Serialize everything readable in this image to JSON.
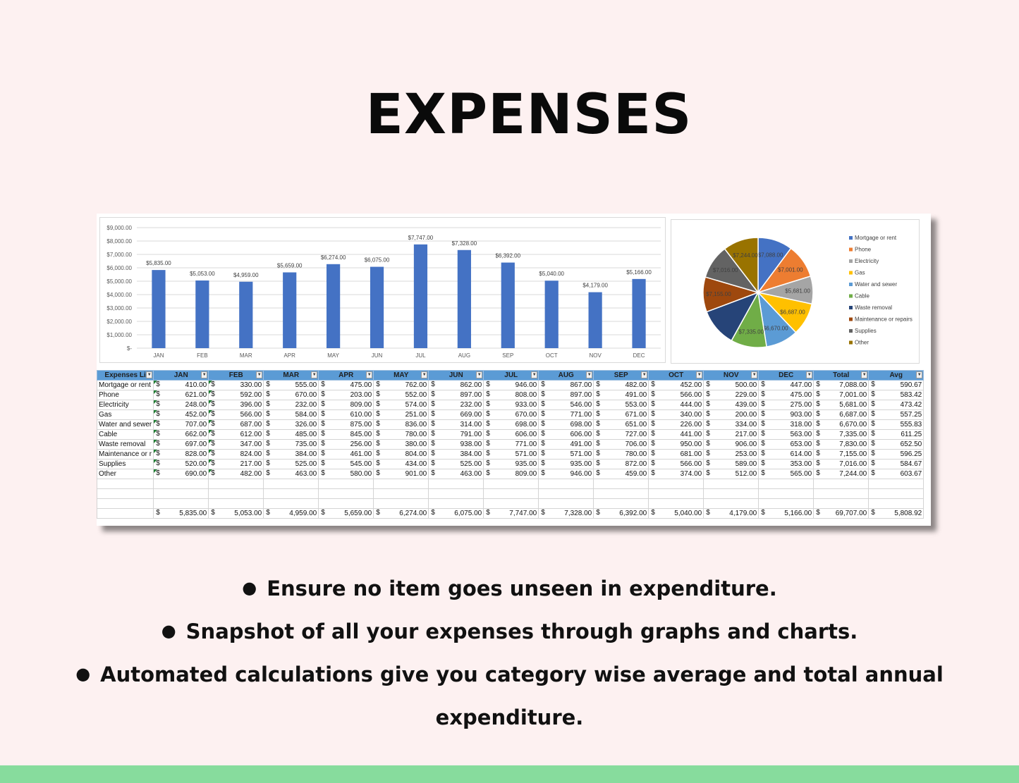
{
  "title": "EXPENSES",
  "bullets": [
    "Ensure no item goes unseen in expenditure.",
    "Snapshot of all your expenses through graphs and charts.",
    "Automated calculations give you category wise average and total annual",
    "expenditure."
  ],
  "colors": {
    "background": "#fdf1f1",
    "bar": "#4472c4",
    "header": "#5b9bd5",
    "footer": "#87dc9d"
  },
  "chart_data": [
    {
      "type": "bar",
      "categories": [
        "JAN",
        "FEB",
        "MAR",
        "APR",
        "MAY",
        "JUN",
        "JUL",
        "AUG",
        "SEP",
        "OCT",
        "NOV",
        "DEC"
      ],
      "values": [
        5835,
        5053,
        4959,
        5659,
        6274,
        6075,
        7747,
        7328,
        6392,
        5040,
        4179,
        5166
      ],
      "data_labels": [
        "$5,835.00",
        "$5,053.00",
        "$4,959.00",
        "$5,659.00",
        "$6,274.00",
        "$6,075.00",
        "$7,747.00",
        "$7,328.00",
        "$6,392.00",
        "$5,040.00",
        "$4,179.00",
        "$5,166.00"
      ],
      "ylim": [
        0,
        9000
      ],
      "y_ticks": [
        0,
        1000,
        2000,
        3000,
        4000,
        5000,
        6000,
        7000,
        8000,
        9000
      ],
      "y_tick_labels": [
        "$-",
        "$1,000.00",
        "$2,000.00",
        "$3,000.00",
        "$4,000.00",
        "$5,000.00",
        "$6,000.00",
        "$7,000.00",
        "$8,000.00",
        "$9,000.00"
      ],
      "grid": true,
      "color": "#4472c4"
    },
    {
      "type": "pie",
      "legend_position": "right",
      "slices": [
        {
          "name": "Mortgage or rent",
          "value": 7088,
          "label": "$7,088.00",
          "color": "#4472c4"
        },
        {
          "name": "Phone",
          "value": 7001,
          "label": "$7,001.00",
          "color": "#ed7d31"
        },
        {
          "name": "Electricity",
          "value": 5681,
          "label": "$5,681.00",
          "color": "#a5a5a5"
        },
        {
          "name": "Gas",
          "value": 6687,
          "label": "$6,687.00",
          "color": "#ffc000"
        },
        {
          "name": "Water and sewer",
          "value": 6670,
          "label": "$6,670.00",
          "color": "#5b9bd5"
        },
        {
          "name": "Cable",
          "value": 7335,
          "label": "$7,335.00",
          "color": "#70ad47"
        },
        {
          "name": "Waste removal",
          "value": 7830,
          "label": "",
          "color": "#264478"
        },
        {
          "name": "Maintenance or repairs",
          "value": 7155,
          "label": "$7,155.00",
          "color": "#9e480e"
        },
        {
          "name": "Supplies",
          "value": 7016,
          "label": "$7,016.00",
          "color": "#636363"
        },
        {
          "name": "Other",
          "value": 7244,
          "label": "$7,244.00",
          "color": "#997300"
        }
      ]
    }
  ],
  "table": {
    "currency": "$",
    "headers": [
      "Expenses Li",
      "JAN",
      "FEB",
      "MAR",
      "APR",
      "MAY",
      "JUN",
      "JUL",
      "AUG",
      "SEP",
      "OCT",
      "NOV",
      "DEC",
      "Total",
      "Avg"
    ],
    "rows": [
      {
        "label": "Mortgage or rent",
        "values": [
          "410.00",
          "330.00",
          "555.00",
          "475.00",
          "762.00",
          "862.00",
          "946.00",
          "867.00",
          "482.00",
          "452.00",
          "500.00",
          "447.00",
          "7,088.00",
          "590.67"
        ]
      },
      {
        "label": "Phone",
        "values": [
          "621.00",
          "592.00",
          "670.00",
          "203.00",
          "552.00",
          "897.00",
          "808.00",
          "897.00",
          "491.00",
          "566.00",
          "229.00",
          "475.00",
          "7,001.00",
          "583.42"
        ]
      },
      {
        "label": "Electricity",
        "values": [
          "248.00",
          "396.00",
          "232.00",
          "809.00",
          "574.00",
          "232.00",
          "933.00",
          "546.00",
          "553.00",
          "444.00",
          "439.00",
          "275.00",
          "5,681.00",
          "473.42"
        ]
      },
      {
        "label": "Gas",
        "values": [
          "452.00",
          "566.00",
          "584.00",
          "610.00",
          "251.00",
          "669.00",
          "670.00",
          "771.00",
          "671.00",
          "340.00",
          "200.00",
          "903.00",
          "6,687.00",
          "557.25"
        ]
      },
      {
        "label": "Water and sewer",
        "values": [
          "707.00",
          "687.00",
          "326.00",
          "875.00",
          "836.00",
          "314.00",
          "698.00",
          "698.00",
          "651.00",
          "226.00",
          "334.00",
          "318.00",
          "6,670.00",
          "555.83"
        ]
      },
      {
        "label": "Cable",
        "values": [
          "662.00",
          "612.00",
          "485.00",
          "845.00",
          "780.00",
          "791.00",
          "606.00",
          "606.00",
          "727.00",
          "441.00",
          "217.00",
          "563.00",
          "7,335.00",
          "611.25"
        ]
      },
      {
        "label": "Waste removal",
        "values": [
          "697.00",
          "347.00",
          "735.00",
          "256.00",
          "380.00",
          "938.00",
          "771.00",
          "491.00",
          "706.00",
          "950.00",
          "906.00",
          "653.00",
          "7,830.00",
          "652.50"
        ]
      },
      {
        "label": "Maintenance or r",
        "values": [
          "828.00",
          "824.00",
          "384.00",
          "461.00",
          "804.00",
          "384.00",
          "571.00",
          "571.00",
          "780.00",
          "681.00",
          "253.00",
          "614.00",
          "7,155.00",
          "596.25"
        ]
      },
      {
        "label": "Supplies",
        "values": [
          "520.00",
          "217.00",
          "525.00",
          "545.00",
          "434.00",
          "525.00",
          "935.00",
          "935.00",
          "872.00",
          "566.00",
          "589.00",
          "353.00",
          "7,016.00",
          "584.67"
        ]
      },
      {
        "label": "Other",
        "values": [
          "690.00",
          "482.00",
          "463.00",
          "580.00",
          "901.00",
          "463.00",
          "809.00",
          "946.00",
          "459.00",
          "374.00",
          "512.00",
          "565.00",
          "7,244.00",
          "603.67"
        ]
      }
    ],
    "totals": [
      "5,835.00",
      "5,053.00",
      "4,959.00",
      "5,659.00",
      "6,274.00",
      "6,075.00",
      "7,747.00",
      "7,328.00",
      "6,392.00",
      "5,040.00",
      "4,179.00",
      "5,166.00",
      "69,707.00",
      "5,808.92"
    ]
  }
}
